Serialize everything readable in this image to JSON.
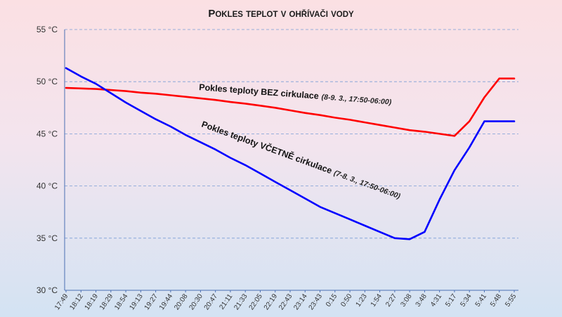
{
  "chart_data": {
    "type": "line",
    "title": "Pokles teplot v ohřívači vody",
    "ylim": [
      30,
      55
    ],
    "ytick_values": [
      30,
      35,
      40,
      45,
      50,
      55
    ],
    "ytick_labels": [
      "30 °C",
      "35 °C",
      "40 °C",
      "45 °C",
      "50 °C",
      "55 °C"
    ],
    "grid": true,
    "categories": [
      "17:49",
      "18:12",
      "18:19",
      "18:29",
      "18:54",
      "19:13",
      "19:27",
      "19:44",
      "20:08",
      "20:30",
      "20:47",
      "21:11",
      "21:33",
      "22:05",
      "22:19",
      "22:43",
      "23:14",
      "23:43",
      "0:15",
      "0:50",
      "1:23",
      "1:54",
      "2:27",
      "3:08",
      "3:48",
      "4:31",
      "5:17",
      "5:34",
      "5:41",
      "5:48",
      "5:55"
    ],
    "series": [
      {
        "name": "Pokles teploty BEZ cirkulace",
        "note": "(8-9. 3., 17:50-06:00)",
        "color": "#ff0000",
        "values": [
          49.4,
          49.35,
          49.3,
          49.2,
          49.1,
          48.95,
          48.85,
          48.7,
          48.55,
          48.4,
          48.25,
          48.05,
          47.9,
          47.7,
          47.5,
          47.25,
          47.0,
          46.8,
          46.55,
          46.35,
          46.1,
          45.85,
          45.6,
          45.35,
          45.2,
          45.0,
          44.8,
          46.2,
          48.5,
          50.3,
          50.3
        ]
      },
      {
        "name": "Pokles teploty VČETNĚ cirkulace",
        "note": "(7-8. 3., 17:50-06:00)",
        "color": "#0000ff",
        "values": [
          51.3,
          50.5,
          49.8,
          48.9,
          48.0,
          47.2,
          46.4,
          45.7,
          44.9,
          44.2,
          43.5,
          42.7,
          42.0,
          41.2,
          40.4,
          39.6,
          38.8,
          38.0,
          37.4,
          36.8,
          36.2,
          35.6,
          35.0,
          34.9,
          35.6,
          38.7,
          41.5,
          43.7,
          46.2,
          46.2,
          46.2
        ]
      }
    ]
  }
}
